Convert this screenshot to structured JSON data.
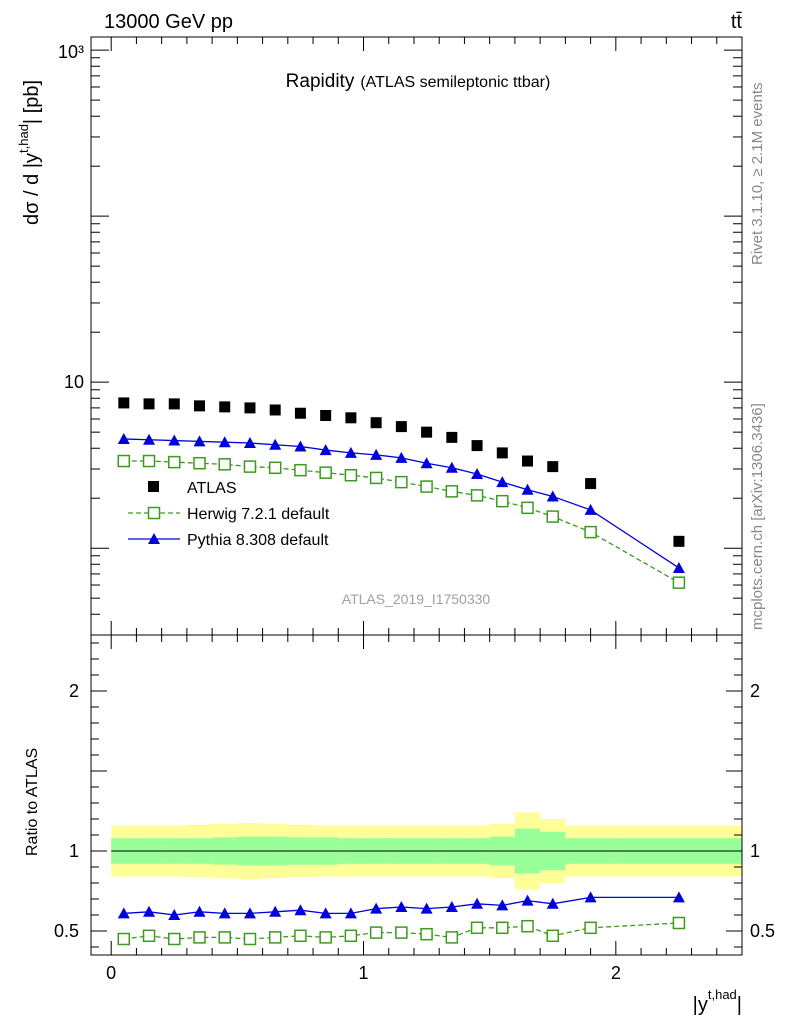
{
  "header": {
    "energy_label": "13000 GeV pp",
    "process_label": "tt̄"
  },
  "side": {
    "rivet_label": "Rivet 3.1.10, ≥ 2.1M events",
    "mcplots_label": "mcplots.cern.ch [arXiv:1306.3436]"
  },
  "chart_data": {
    "type": "scatter",
    "title": "Rapidity",
    "subtitle": "(ATLAS semileptonic ttbar)",
    "analysis_id": "ATLAS_2019_I1750330",
    "ylabel_html": "dσ / d |y^{t,had}| [pb]",
    "ylabel_main": "dσ / d |y",
    "ylabel_sup": "t,had",
    "ylabel_tail": "| [pb]",
    "xlabel_main": "|y",
    "xlabel_sup": "t,had",
    "xlabel_tail": "|",
    "ratio_ylabel": "Ratio to ATLAS",
    "log_y": true,
    "ylim": [
      0.3,
      1200
    ],
    "xlim": [
      -0.08,
      2.5
    ],
    "ratio_ylim": [
      0.35,
      2.35
    ],
    "y_tick_labels": [
      "10",
      "10³"
    ],
    "x_tick_labels": [
      "0",
      "1",
      "2"
    ],
    "ratio_tick_labels": [
      "0.5",
      "1",
      "2"
    ],
    "legend_position": "lower-left",
    "colors": {
      "atlas": "#000000",
      "herwig": "#3d9a1f",
      "pythia": "#0000dd",
      "band_inner": "#99ff99",
      "band_outer": "#ffff99"
    },
    "x": [
      0.05,
      0.15,
      0.25,
      0.35,
      0.45,
      0.55,
      0.65,
      0.75,
      0.85,
      0.95,
      1.05,
      1.15,
      1.25,
      1.35,
      1.45,
      1.55,
      1.65,
      1.75,
      1.9,
      2.25
    ],
    "x_edges": [
      0,
      0.1,
      0.2,
      0.3,
      0.4,
      0.5,
      0.6,
      0.7,
      0.8,
      0.9,
      1.0,
      1.1,
      1.2,
      1.3,
      1.4,
      1.5,
      1.6,
      1.7,
      1.8,
      2.0,
      2.5
    ],
    "series": [
      {
        "name": "ATLAS",
        "key": "atlas",
        "values": [
          7.5,
          7.4,
          7.4,
          7.2,
          7.1,
          7.0,
          6.8,
          6.5,
          6.3,
          6.1,
          5.7,
          5.4,
          5.0,
          4.65,
          4.15,
          3.75,
          3.35,
          3.1,
          2.45,
          1.1
        ]
      },
      {
        "name": "Herwig 7.2.1 default",
        "key": "herwig",
        "values": [
          3.35,
          3.35,
          3.3,
          3.25,
          3.2,
          3.1,
          3.05,
          2.95,
          2.85,
          2.75,
          2.65,
          2.5,
          2.35,
          2.2,
          2.08,
          1.92,
          1.75,
          1.55,
          1.25,
          0.62
        ]
      },
      {
        "name": "Pythia 8.308 default",
        "key": "pythia",
        "values": [
          4.55,
          4.5,
          4.45,
          4.4,
          4.35,
          4.3,
          4.2,
          4.1,
          3.9,
          3.75,
          3.65,
          3.5,
          3.25,
          3.05,
          2.8,
          2.5,
          2.25,
          2.05,
          1.7,
          0.76
        ]
      }
    ],
    "ratio": {
      "herwig": [
        0.45,
        0.47,
        0.45,
        0.46,
        0.46,
        0.45,
        0.46,
        0.47,
        0.46,
        0.47,
        0.49,
        0.49,
        0.48,
        0.46,
        0.52,
        0.52,
        0.53,
        0.47,
        0.52,
        0.55
      ],
      "pythia": [
        0.61,
        0.62,
        0.6,
        0.62,
        0.61,
        0.61,
        0.62,
        0.63,
        0.61,
        0.61,
        0.64,
        0.65,
        0.64,
        0.65,
        0.67,
        0.66,
        0.69,
        0.67,
        0.71,
        0.71
      ],
      "band_inner": [
        0.08,
        0.08,
        0.08,
        0.08,
        0.085,
        0.09,
        0.09,
        0.085,
        0.085,
        0.08,
        0.08,
        0.08,
        0.08,
        0.08,
        0.08,
        0.09,
        0.14,
        0.12,
        0.08,
        0.08
      ],
      "band_outer": [
        0.16,
        0.16,
        0.16,
        0.165,
        0.17,
        0.175,
        0.17,
        0.165,
        0.16,
        0.16,
        0.16,
        0.16,
        0.16,
        0.16,
        0.16,
        0.17,
        0.24,
        0.2,
        0.16,
        0.16
      ]
    }
  }
}
